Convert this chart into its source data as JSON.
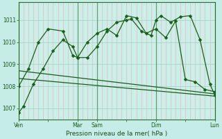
{
  "xlabel": "Pression niveau de la mer( hPa )",
  "bg_color": "#c5ece6",
  "plot_bg_color": "#cceee8",
  "line_color": "#1a5c1a",
  "ylim": [
    1006.5,
    1011.8
  ],
  "yticks": [
    1007,
    1008,
    1009,
    1010,
    1011
  ],
  "xtick_labels": [
    "Ven",
    "",
    "Mar",
    "Sam",
    "",
    "Dim",
    "",
    "Lun"
  ],
  "xtick_positions": [
    0,
    3,
    6,
    8,
    11,
    14,
    17,
    20
  ],
  "major_vlines": [
    0,
    6,
    8,
    14,
    20
  ],
  "xmax": 20,
  "line1_x": [
    0,
    0.5,
    1.5,
    2.5,
    3.5,
    4.5,
    5.5,
    6.0,
    7.0,
    8.0,
    9.0,
    10.0,
    11.0,
    11.5,
    12.5,
    13.5,
    14.0,
    14.5,
    15.5,
    16.5,
    17.5,
    18.5,
    19.5,
    20.0
  ],
  "line1_y": [
    1006.8,
    1007.1,
    1008.1,
    1008.8,
    1009.6,
    1010.1,
    1009.8,
    1009.3,
    1009.3,
    1009.8,
    1010.5,
    1010.9,
    1011.0,
    1011.05,
    1010.5,
    1010.3,
    1011.0,
    1011.2,
    1010.9,
    1011.15,
    1011.2,
    1010.1,
    1008.1,
    1007.6
  ],
  "line2_x": [
    0,
    1.0,
    2.0,
    3.0,
    4.5,
    5.5,
    6.0,
    7.0,
    8.0,
    9.0,
    10.0,
    11.0,
    12.0,
    13.0,
    14.0,
    15.0,
    16.0,
    17.0,
    18.0,
    19.0,
    20.0
  ],
  "line2_y": [
    1008.0,
    1008.8,
    1010.0,
    1010.6,
    1010.5,
    1009.4,
    1009.3,
    1010.0,
    1010.4,
    1010.6,
    1010.3,
    1011.2,
    1011.1,
    1010.4,
    1010.6,
    1010.2,
    1010.95,
    1008.3,
    1008.2,
    1007.85,
    1007.75
  ],
  "trend1_x": [
    0,
    20
  ],
  "trend1_y": [
    1008.7,
    1007.65
  ],
  "trend2_x": [
    0,
    20
  ],
  "trend2_y": [
    1008.35,
    1007.55
  ],
  "marker": "D",
  "markersize": 2.5,
  "linewidth": 0.9
}
